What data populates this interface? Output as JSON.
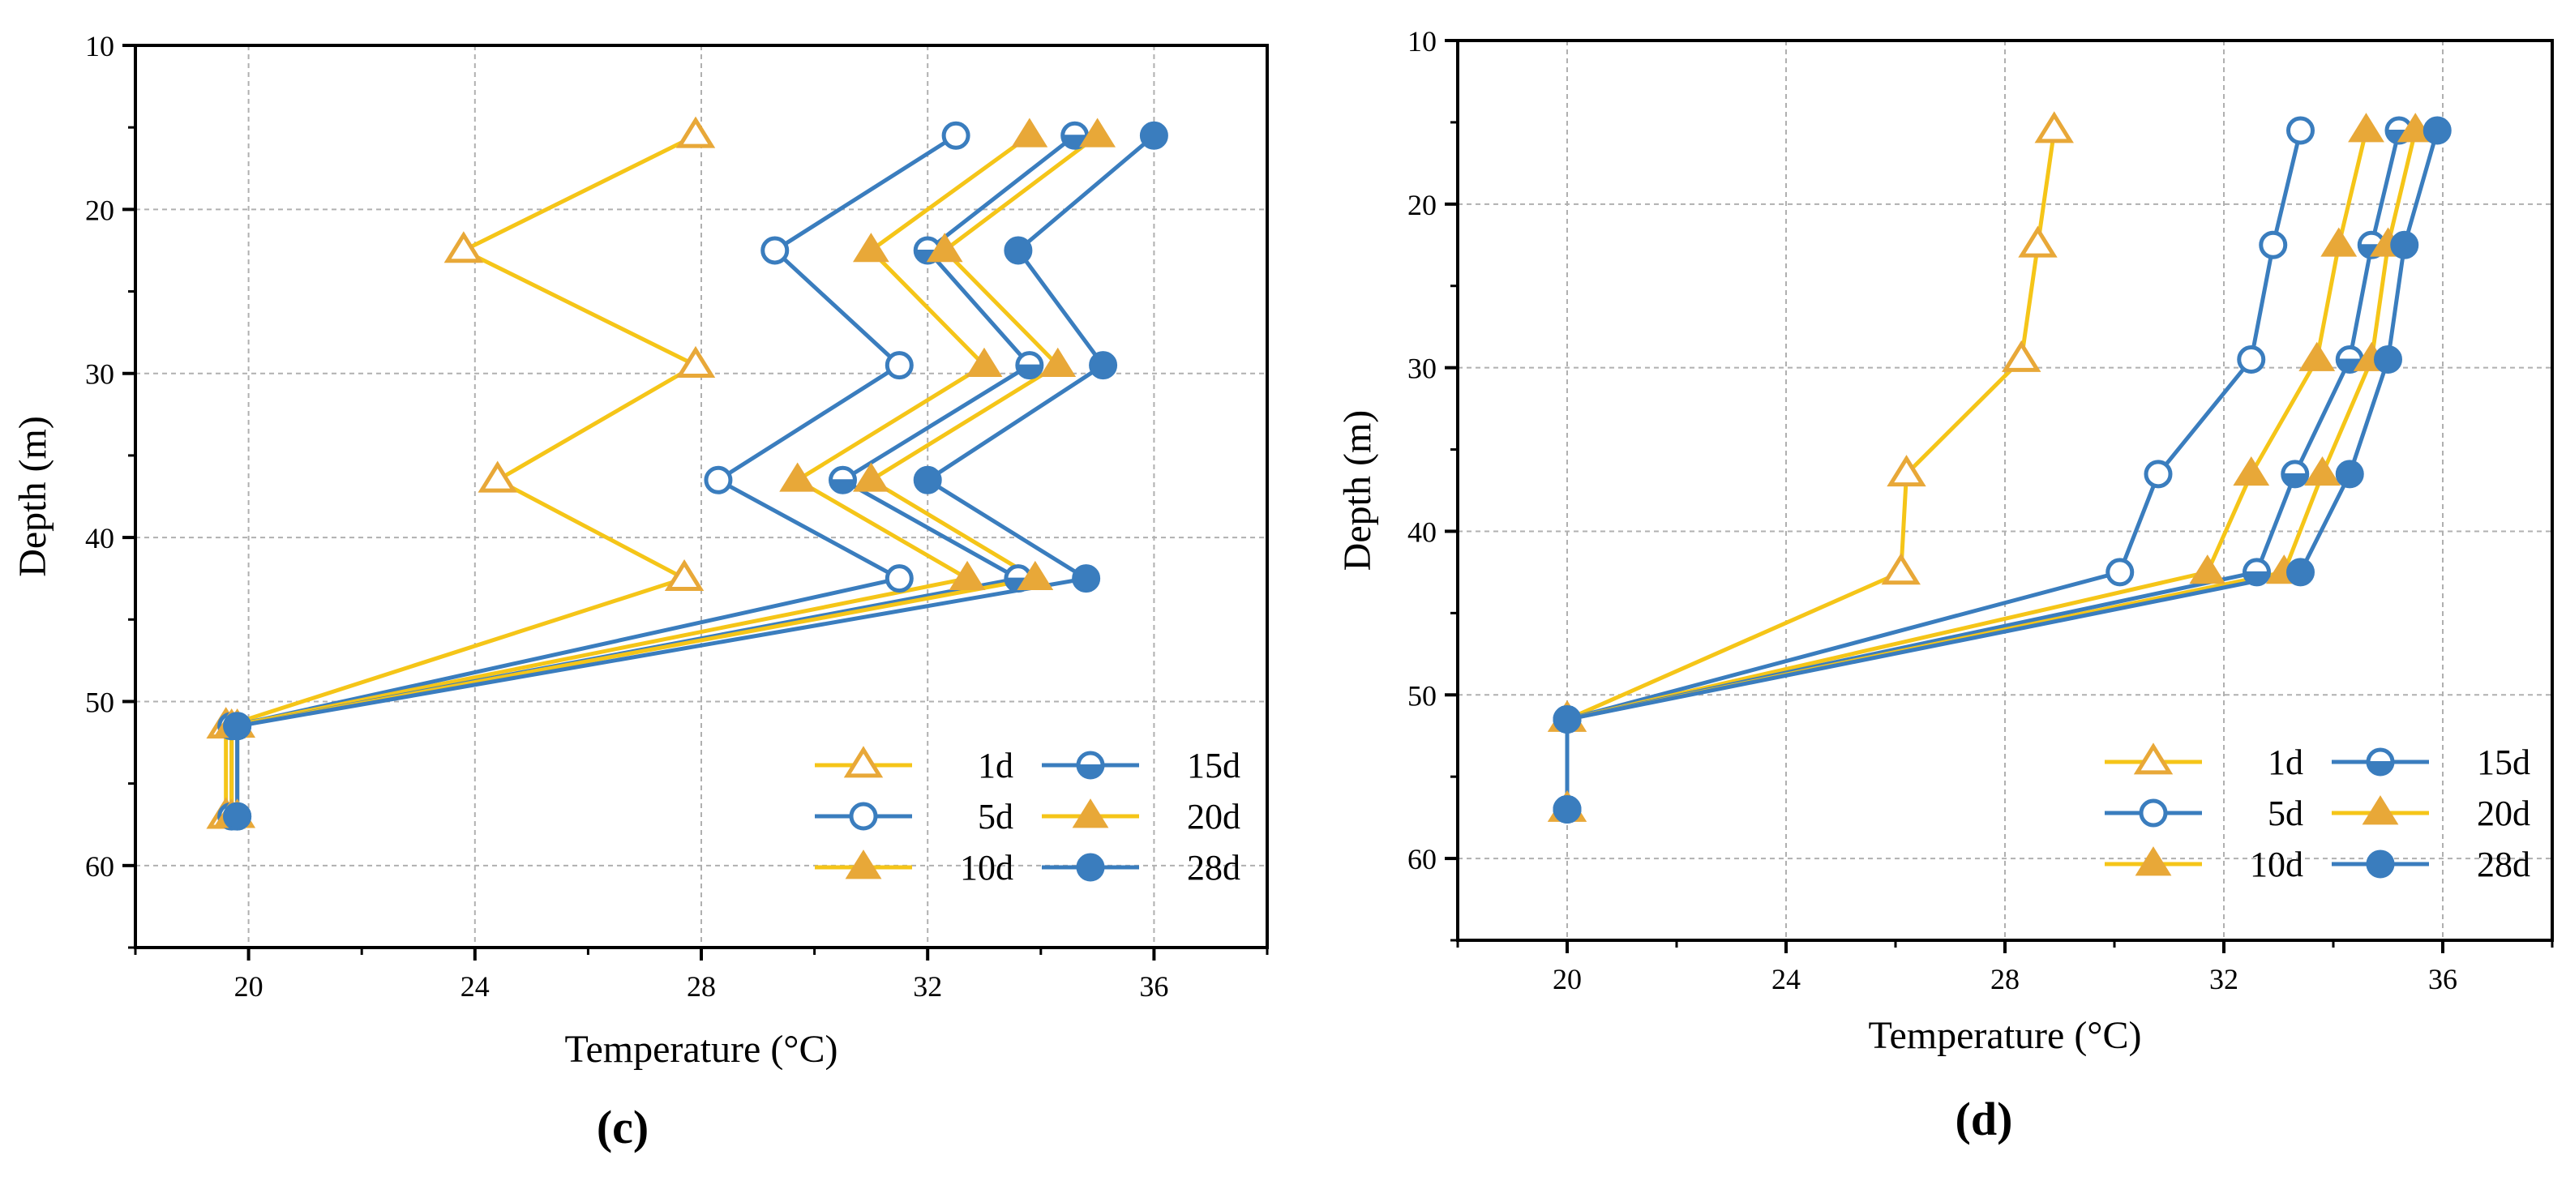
{
  "chart_data": [
    {
      "type": "line",
      "panel_label": "(c)",
      "xlabel": "Temperature (°C)",
      "ylabel": "Depth (m)",
      "xlim": [
        18,
        38
      ],
      "ylim": [
        65,
        10
      ],
      "x_ticks": [
        20,
        24,
        28,
        32,
        36
      ],
      "y_ticks": [
        10,
        20,
        30,
        40,
        50,
        60
      ],
      "grid": true,
      "legend_position": "bottom-right",
      "colors": {
        "yellow_line": "#F5C518",
        "orange_marker": "#E8A838",
        "blue": "#3A7DBE"
      },
      "series": [
        {
          "name": "1d",
          "line": "yellow",
          "marker": "triangle-open",
          "points": [
            [
              27.9,
              15.5
            ],
            [
              23.8,
              22.5
            ],
            [
              27.9,
              29.5
            ],
            [
              24.4,
              36.5
            ],
            [
              27.7,
              42.5
            ],
            [
              19.6,
              51.5
            ],
            [
              19.6,
              57
            ]
          ]
        },
        {
          "name": "5d",
          "line": "blue",
          "marker": "circle-open",
          "points": [
            [
              32.5,
              15.5
            ],
            [
              29.3,
              22.5
            ],
            [
              31.5,
              29.5
            ],
            [
              28.3,
              36.5
            ],
            [
              31.5,
              42.5
            ],
            [
              19.7,
              51.5
            ],
            [
              19.7,
              57
            ]
          ]
        },
        {
          "name": "10d",
          "line": "yellow",
          "marker": "triangle-filled",
          "points": [
            [
              33.8,
              15.5
            ],
            [
              31.0,
              22.5
            ],
            [
              33.0,
              29.5
            ],
            [
              29.7,
              36.5
            ],
            [
              32.7,
              42.5
            ],
            [
              19.7,
              51.5
            ],
            [
              19.7,
              57
            ]
          ]
        },
        {
          "name": "15d",
          "line": "blue",
          "marker": "circle-half",
          "points": [
            [
              34.6,
              15.5
            ],
            [
              32.0,
              22.5
            ],
            [
              33.8,
              29.5
            ],
            [
              30.5,
              36.5
            ],
            [
              33.6,
              42.5
            ],
            [
              19.8,
              51.5
            ],
            [
              19.8,
              57
            ]
          ]
        },
        {
          "name": "20d",
          "line": "yellow",
          "marker": "triangle-filled",
          "points": [
            [
              35.0,
              15.5
            ],
            [
              32.3,
              22.5
            ],
            [
              34.3,
              29.5
            ],
            [
              31.0,
              36.5
            ],
            [
              33.9,
              42.5
            ],
            [
              19.8,
              51.5
            ],
            [
              19.8,
              57
            ]
          ]
        },
        {
          "name": "28d",
          "line": "blue",
          "marker": "circle-filled",
          "points": [
            [
              36.0,
              15.5
            ],
            [
              33.6,
              22.5
            ],
            [
              35.1,
              29.5
            ],
            [
              32.0,
              36.5
            ],
            [
              34.8,
              42.5
            ],
            [
              19.8,
              51.5
            ],
            [
              19.8,
              57
            ]
          ]
        }
      ]
    },
    {
      "type": "line",
      "panel_label": "(d)",
      "xlabel": "Temperature (°C)",
      "ylabel": "Depth (m)",
      "xlim": [
        18,
        38
      ],
      "ylim": [
        65,
        10
      ],
      "x_ticks": [
        20,
        24,
        28,
        32,
        36
      ],
      "y_ticks": [
        10,
        20,
        30,
        40,
        50,
        60
      ],
      "grid": true,
      "legend_position": "bottom-right",
      "colors": {
        "yellow_line": "#F5C518",
        "orange_marker": "#E8A838",
        "blue": "#3A7DBE"
      },
      "series": [
        {
          "name": "1d",
          "line": "yellow",
          "marker": "triangle-open",
          "points": [
            [
              28.9,
              15.5
            ],
            [
              28.6,
              22.5
            ],
            [
              28.3,
              29.5
            ],
            [
              26.2,
              36.5
            ],
            [
              26.1,
              42.5
            ],
            [
              20.0,
              51.5
            ],
            [
              20.0,
              57
            ]
          ]
        },
        {
          "name": "5d",
          "line": "blue",
          "marker": "circle-open",
          "points": [
            [
              33.4,
              15.5
            ],
            [
              32.9,
              22.5
            ],
            [
              32.5,
              29.5
            ],
            [
              30.8,
              36.5
            ],
            [
              30.1,
              42.5
            ],
            [
              20.0,
              51.5
            ],
            [
              20.0,
              57
            ]
          ]
        },
        {
          "name": "10d",
          "line": "yellow",
          "marker": "triangle-filled",
          "points": [
            [
              34.6,
              15.5
            ],
            [
              34.1,
              22.5
            ],
            [
              33.7,
              29.5
            ],
            [
              32.5,
              36.5
            ],
            [
              31.7,
              42.5
            ],
            [
              20.0,
              51.5
            ],
            [
              20.0,
              57
            ]
          ]
        },
        {
          "name": "15d",
          "line": "blue",
          "marker": "circle-half",
          "points": [
            [
              35.2,
              15.5
            ],
            [
              34.7,
              22.5
            ],
            [
              34.3,
              29.5
            ],
            [
              33.3,
              36.5
            ],
            [
              32.6,
              42.5
            ],
            [
              20.0,
              51.5
            ],
            [
              20.0,
              57
            ]
          ]
        },
        {
          "name": "20d",
          "line": "yellow",
          "marker": "triangle-filled",
          "points": [
            [
              35.5,
              15.5
            ],
            [
              35.0,
              22.5
            ],
            [
              34.7,
              29.5
            ],
            [
              33.8,
              36.5
            ],
            [
              33.1,
              42.5
            ],
            [
              20.0,
              51.5
            ],
            [
              20.0,
              57
            ]
          ]
        },
        {
          "name": "28d",
          "line": "blue",
          "marker": "circle-filled",
          "points": [
            [
              35.9,
              15.5
            ],
            [
              35.3,
              22.5
            ],
            [
              35.0,
              29.5
            ],
            [
              34.3,
              36.5
            ],
            [
              33.4,
              42.5
            ],
            [
              20.0,
              51.5
            ],
            [
              20.0,
              57
            ]
          ]
        }
      ]
    }
  ]
}
